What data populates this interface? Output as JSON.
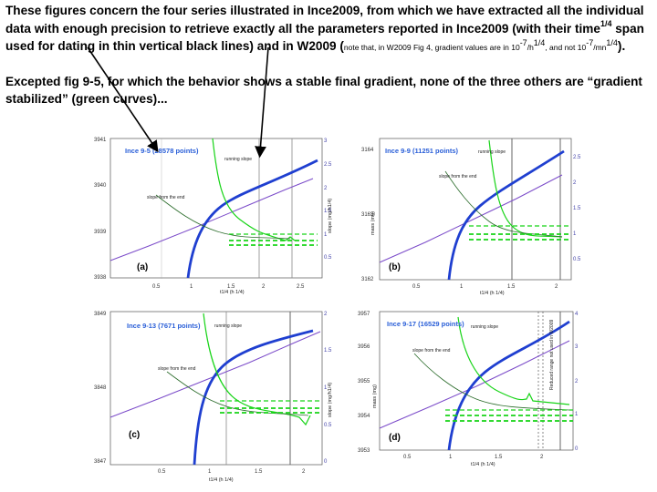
{
  "intro": {
    "part1": "These figures concern the four series illustrated in Ince2009, from which we have extracted all the individual data with enough precision to retrieve exactly all the parameters reported in Ince2009 (with their time",
    "sup1": "1/4",
    "part2": " span used for dating in thin vertical black lines) and in W2009 (",
    "note1": "note that, in W2009 Fig 4, gradient values are in 10",
    "note_sup1": "-7",
    "note2": "/h",
    "note_sup2": "1/4",
    "note3": ", and not 10",
    "note_sup3": "-7",
    "note4": "/mn",
    "note_sup4": "1/4",
    "part3": ")."
  },
  "conclusion": "Excepted fig 9-5, for which the behavior shows a stable final gradient, none of the three others are “gradient stabilized” (green curves)...",
  "colors": {
    "mass_curve": "#1f3fd0",
    "slope_curve": "#18d418",
    "fit_line": "#7b4bc9",
    "end_slope": "#2a6b2a",
    "title": "#2a5fd8"
  },
  "chart_data": [
    {
      "type": "line",
      "panel_label": "(a)",
      "title": "Ince 9-5 (28578 points)",
      "xlabel": "t1/4 (h 1/4)",
      "ylabel_right": "slope (mg/h1/4)",
      "x_ticks": [
        "0.5",
        "1",
        "1.5",
        "2",
        "2.5"
      ],
      "y_ticks_left": [
        "3938",
        "3939",
        "3940",
        "3941"
      ],
      "y_ticks_right": [
        "0.5",
        "1",
        "1.5",
        "2",
        "2.5",
        "3"
      ],
      "annotations": [
        "running slope",
        "slope from the end"
      ]
    },
    {
      "type": "line",
      "panel_label": "(b)",
      "title": "Ince 9-9 (11251 points)",
      "xlabel": "t1/4 (h 1/4)",
      "ylabel_left": "mass (mg)",
      "x_ticks": [
        "0.5",
        "1",
        "1.5",
        "2"
      ],
      "y_ticks_left": [
        "3162",
        "3163",
        "3164"
      ],
      "y_ticks_right": [
        "0.5",
        "1",
        "1.5",
        "2",
        "2.5"
      ],
      "annotations": [
        "running slope",
        "slope from the end"
      ]
    },
    {
      "type": "line",
      "panel_label": "(c)",
      "title": "Ince 9-13 (7671 points)",
      "xlabel": "t1/4 (h 1/4)",
      "ylabel_right": "slope (mg/h1/4)",
      "x_ticks": [
        "0.5",
        "1",
        "1.5",
        "2"
      ],
      "y_ticks_left": [
        "3847",
        "3848",
        "3849"
      ],
      "y_ticks_right": [
        "0",
        "0.5",
        "1",
        "1.5",
        "2"
      ],
      "annotations": [
        "running slope",
        "slope from the end"
      ]
    },
    {
      "type": "line",
      "panel_label": "(d)",
      "title": "Ince 9-17 (16529 points)",
      "xlabel": "t1/4 (h 1/4)",
      "ylabel_left": "mass (mg)",
      "x_ticks": [
        "0.5",
        "1",
        "1.5",
        "2"
      ],
      "y_ticks_left": [
        "3953",
        "3954",
        "3955",
        "3956",
        "3957"
      ],
      "y_ticks_right": [
        "0",
        "1",
        "2",
        "3",
        "4"
      ],
      "annotations": [
        "running slope",
        "slope from the end",
        "Reduced range not used in W2009"
      ]
    }
  ]
}
